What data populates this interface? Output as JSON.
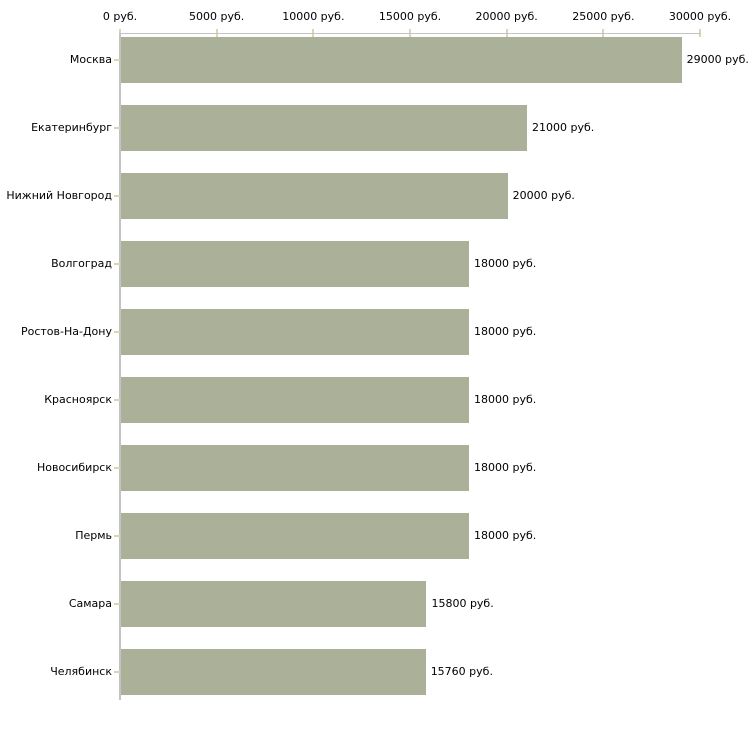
{
  "chart_data": {
    "type": "bar",
    "orientation": "horizontal",
    "title": "",
    "xlabel": "",
    "ylabel": "",
    "categories": [
      "Москва",
      "Екатеринбург",
      "Нижний Новгород",
      "Волгоград",
      "Ростов-На-Дону",
      "Красноярск",
      "Новосибирск",
      "Пермь",
      "Самара",
      "Челябинск"
    ],
    "values": [
      29000,
      21000,
      20000,
      18000,
      18000,
      18000,
      18000,
      18000,
      15800,
      15760
    ],
    "bar_labels": [
      "29000 руб.",
      "21000 руб.",
      "20000 руб.",
      "18000 руб.",
      "18000 руб.",
      "18000 руб.",
      "18000 руб.",
      "18000 руб.",
      "15800 руб.",
      "15760 руб."
    ],
    "xlim": [
      0,
      30000
    ],
    "x_ticks": [
      0,
      5000,
      10000,
      15000,
      20000,
      25000,
      30000
    ],
    "x_tick_labels": [
      "0 руб.",
      "5000 руб.",
      "10000 руб.",
      "15000 руб.",
      "20000 руб.",
      "25000 руб.",
      "30000 руб."
    ],
    "grid": false,
    "legend": false
  },
  "style": {
    "background_color": "#ffffff",
    "bar_color": "#abb199",
    "tick_mark_color": "#d9d6b3",
    "axis_line_color": "#c3c3c3",
    "text_color": "#000000"
  }
}
